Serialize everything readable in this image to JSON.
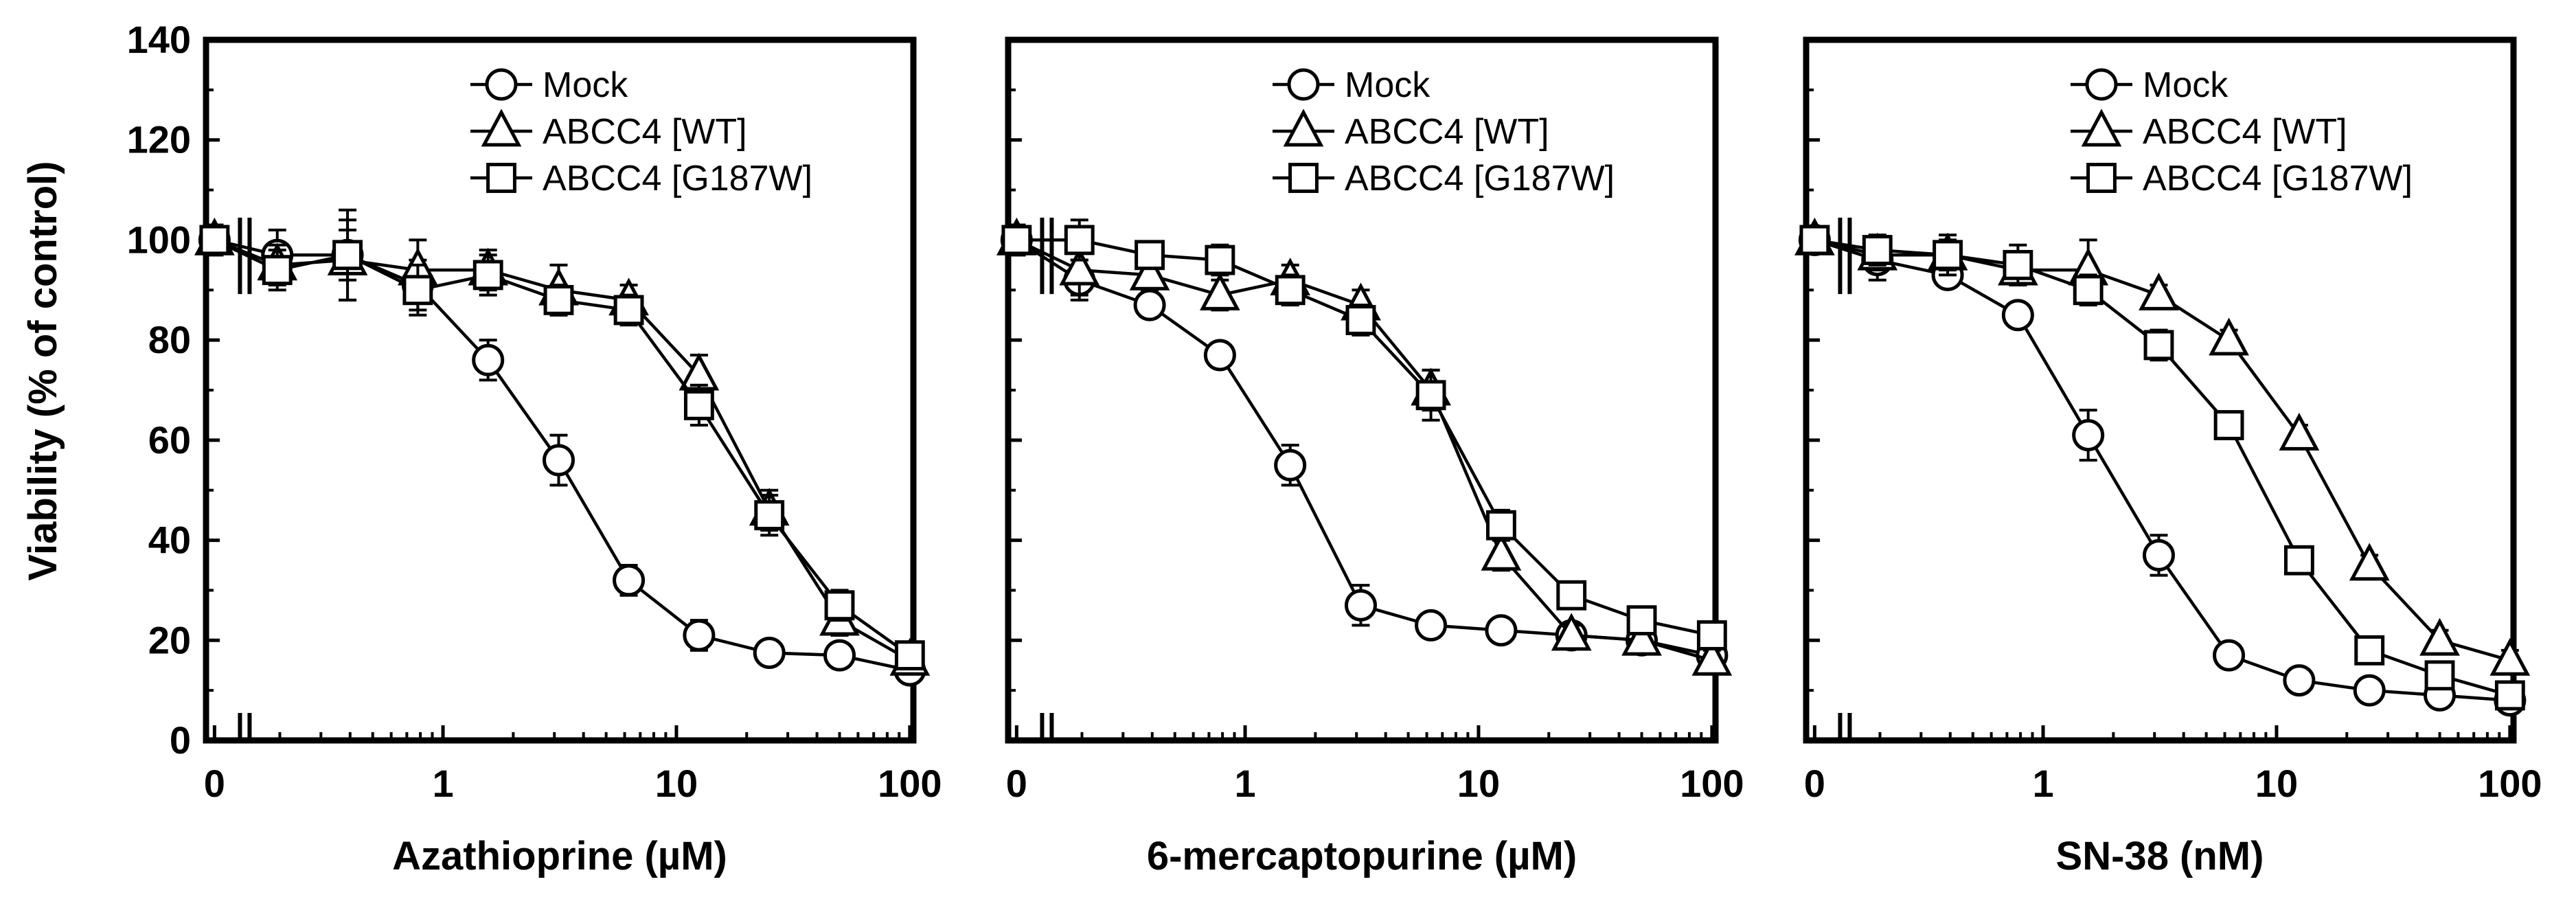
{
  "ylabel": "Viability (% of control)",
  "chart_data": [
    {
      "type": "line",
      "xlabel": "Azathioprine (µM)",
      "ylabel": "Viability (% of control)",
      "xscale": "log with zero break",
      "xticks": [
        "0",
        "1",
        "10",
        "100"
      ],
      "yticks": [
        "0",
        "20",
        "40",
        "60",
        "80",
        "100",
        "120",
        "140"
      ],
      "ylim": [
        0,
        140
      ],
      "legend_position": "top-center",
      "series": [
        {
          "name": "Mock",
          "marker": "circle",
          "x": [
            0,
            0.195,
            0.39,
            0.78,
            1.56,
            3.13,
            6.25,
            12.5,
            25,
            50,
            100
          ],
          "y": [
            100,
            97,
            97,
            91,
            76,
            56,
            32,
            21,
            17.5,
            17,
            14
          ],
          "err": [
            3,
            5,
            5,
            5,
            4,
            5,
            3,
            3,
            2,
            2,
            2
          ]
        },
        {
          "name": "ABCC4 [WT]",
          "marker": "triangle",
          "x": [
            0,
            0.195,
            0.39,
            0.78,
            1.56,
            3.13,
            6.25,
            12.5,
            25,
            50,
            100
          ],
          "y": [
            100,
            95,
            96,
            94,
            94,
            90,
            88,
            73,
            46,
            24,
            16
          ],
          "err": [
            3,
            4,
            8,
            6,
            4,
            5,
            3,
            4,
            4,
            3,
            2
          ]
        },
        {
          "name": "ABCC4 [G187W]",
          "marker": "square",
          "x": [
            0,
            0.195,
            0.39,
            0.78,
            1.56,
            3.13,
            6.25,
            12.5,
            25,
            50,
            100
          ],
          "y": [
            100,
            94,
            97,
            90,
            93,
            88,
            86,
            67,
            45,
            27,
            17
          ],
          "err": [
            3,
            4,
            9,
            5,
            4,
            3,
            3,
            4,
            4,
            3,
            2
          ]
        }
      ]
    },
    {
      "type": "line",
      "xlabel": "6-mercaptopurine (µM)",
      "ylabel": "Viability (% of control)",
      "xscale": "log with zero break",
      "xticks": [
        "0",
        "1",
        "10",
        "100"
      ],
      "yticks": [
        "0",
        "20",
        "40",
        "60",
        "80",
        "100",
        "120",
        "140"
      ],
      "ylim": [
        0,
        140
      ],
      "legend_position": "top-center",
      "series": [
        {
          "name": "Mock",
          "marker": "circle",
          "x": [
            0,
            0.195,
            0.39,
            0.78,
            1.56,
            3.13,
            6.25,
            12.5,
            25,
            50,
            100
          ],
          "y": [
            100,
            92,
            87,
            77,
            55,
            27,
            23,
            22,
            21,
            20,
            17
          ],
          "err": [
            3,
            4,
            2,
            2,
            4,
            4,
            2,
            2,
            2,
            2,
            2
          ]
        },
        {
          "name": "ABCC4 [WT]",
          "marker": "triangle",
          "x": [
            0,
            0.195,
            0.39,
            0.78,
            1.56,
            3.13,
            6.25,
            12.5,
            25,
            50,
            100
          ],
          "y": [
            100,
            94,
            93,
            89,
            92,
            87,
            70,
            37,
            21,
            20,
            16
          ],
          "err": [
            3,
            5,
            3,
            3,
            3,
            3,
            4,
            3,
            2,
            2,
            2
          ]
        },
        {
          "name": "ABCC4 [G187W]",
          "marker": "square",
          "x": [
            0,
            0.195,
            0.39,
            0.78,
            1.56,
            3.13,
            6.25,
            12.5,
            25,
            50,
            100
          ],
          "y": [
            100,
            100,
            97,
            96,
            90,
            84,
            69,
            43,
            29,
            24,
            21
          ],
          "err": [
            3,
            4,
            2,
            3,
            3,
            3,
            5,
            3,
            2,
            2,
            2
          ]
        }
      ]
    },
    {
      "type": "line",
      "xlabel": "SN-38 (nM)",
      "ylabel": "Viability (% of control)",
      "xscale": "log with zero break",
      "xticks": [
        "0",
        "1",
        "10",
        "100"
      ],
      "yticks": [
        "0",
        "20",
        "40",
        "60",
        "80",
        "100",
        "120",
        "140"
      ],
      "ylim": [
        0,
        140
      ],
      "legend_position": "top-center",
      "series": [
        {
          "name": "Mock",
          "marker": "circle",
          "x": [
            0,
            0.195,
            0.39,
            0.78,
            1.56,
            3.13,
            6.25,
            12.5,
            25,
            50,
            100
          ],
          "y": [
            100,
            96,
            93,
            85,
            61,
            37,
            17,
            12,
            10,
            9,
            8
          ],
          "err": [
            2,
            4,
            2,
            2,
            5,
            4,
            2,
            2,
            2,
            2,
            2
          ]
        },
        {
          "name": "ABCC4 [WT]",
          "marker": "triangle",
          "x": [
            0,
            0.195,
            0.39,
            0.78,
            1.56,
            3.13,
            6.25,
            12.5,
            25,
            50,
            100
          ],
          "y": [
            100,
            97,
            97,
            94,
            94,
            89,
            80,
            61,
            35,
            20,
            16
          ],
          "err": [
            2,
            3,
            4,
            3,
            6,
            2,
            2,
            2,
            2,
            2,
            2
          ]
        },
        {
          "name": "ABCC4 [G187W]",
          "marker": "square",
          "x": [
            0,
            0.195,
            0.39,
            0.78,
            1.56,
            3.13,
            6.25,
            12.5,
            25,
            50,
            100
          ],
          "y": [
            100,
            98,
            97,
            95,
            90,
            79,
            63,
            36,
            18,
            13,
            9
          ],
          "err": [
            2,
            3,
            3,
            4,
            3,
            3,
            2,
            2,
            2,
            2,
            2
          ]
        }
      ]
    }
  ]
}
